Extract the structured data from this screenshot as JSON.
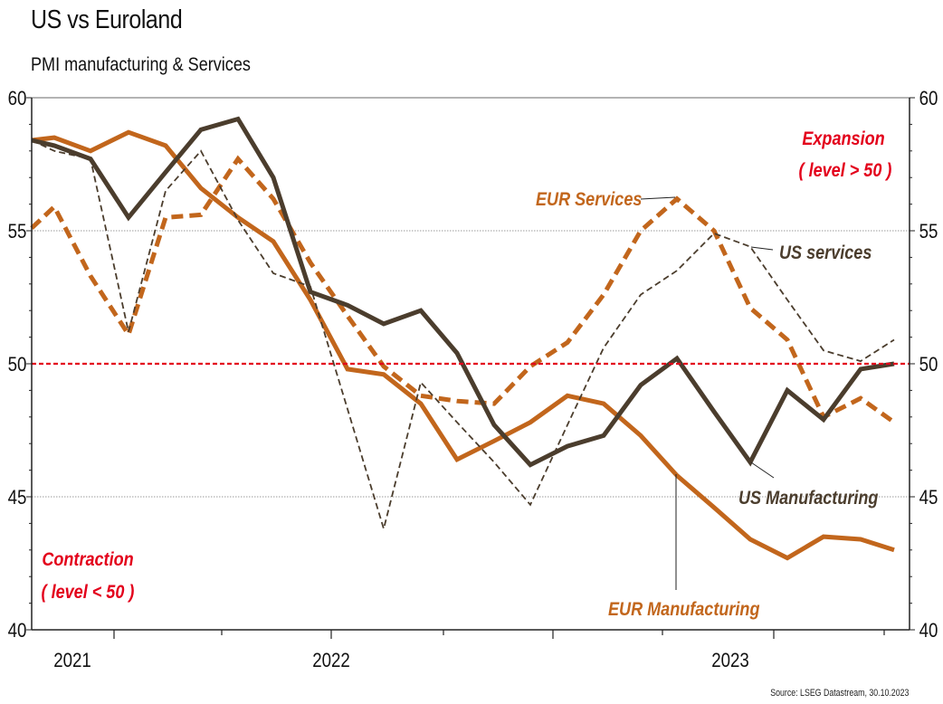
{
  "header": {
    "title": "US vs Euroland",
    "subtitle": "PMI manufacturing & Services"
  },
  "footer": {
    "source": "Source: LSEG Datastream, 30.10.2023"
  },
  "colors": {
    "eur": "#c2661c",
    "us": "#4b3d2d",
    "threshold": "#e3001b",
    "grid": "#9a9a9a",
    "axis": "#222222"
  },
  "chart_data": {
    "type": "line",
    "title": "US vs Euroland",
    "subtitle": "PMI manufacturing & Services",
    "xlabel": "",
    "ylabel": "",
    "ylim": [
      40,
      60
    ],
    "y_ticks": [
      40,
      45,
      50,
      55,
      60
    ],
    "y_axes": [
      "left",
      "right"
    ],
    "x_tick_labels": [
      "2021",
      "2022",
      "2023"
    ],
    "grid": "horizontal dotted at 45 and 55",
    "threshold_line": {
      "value": 50,
      "style": "red dashed"
    },
    "n_points": 25,
    "series": [
      {
        "name": "EUR Manufacturing",
        "style": "solid-thick",
        "color": "#c2661c",
        "values": [
          58.4,
          58.5,
          58.0,
          58.7,
          58.2,
          56.6,
          55.5,
          54.6,
          52.4,
          49.8,
          49.6,
          48.5,
          46.4,
          47.1,
          47.8,
          48.8,
          48.5,
          47.3,
          45.8,
          44.6,
          43.4,
          42.7,
          43.5,
          43.4,
          43.0
        ]
      },
      {
        "name": "US Manufacturing",
        "style": "solid-thick",
        "color": "#4b3d2d",
        "values": [
          58.4,
          58.2,
          57.7,
          55.5,
          57.2,
          58.8,
          59.2,
          57.0,
          52.7,
          52.2,
          51.5,
          52.0,
          50.4,
          47.7,
          46.2,
          46.9,
          47.3,
          49.2,
          50.2,
          48.2,
          46.3,
          49.0,
          47.9,
          49.8,
          50.0
        ]
      },
      {
        "name": "EUR Services",
        "style": "dashed-thick",
        "color": "#c2661c",
        "values": [
          55.1,
          55.9,
          53.3,
          51.1,
          55.5,
          55.6,
          57.7,
          56.2,
          53.8,
          51.8,
          49.9,
          48.8,
          48.6,
          48.5,
          49.9,
          50.8,
          52.6,
          55.0,
          56.2,
          55.0,
          52.1,
          50.9,
          48.0,
          48.7,
          47.8
        ]
      },
      {
        "name": "US services",
        "style": "dashed-thin",
        "color": "#4b3d2d",
        "values": [
          58.4,
          58.0,
          57.7,
          51.2,
          56.5,
          58.0,
          55.4,
          53.4,
          52.9,
          48.3,
          43.8,
          49.3,
          47.8,
          46.3,
          44.7,
          47.7,
          50.6,
          52.6,
          53.5,
          54.9,
          54.4,
          52.4,
          50.5,
          50.1,
          50.9
        ]
      }
    ],
    "annotations": [
      {
        "text": "EUR Services",
        "color": "#c2661c"
      },
      {
        "text": "US services",
        "color": "#4b3d2d"
      },
      {
        "text": "US Manufacturing",
        "color": "#4b3d2d"
      },
      {
        "text": "EUR Manufacturing",
        "color": "#c2661c"
      },
      {
        "text": "Expansion",
        "color": "#e3001b"
      },
      {
        "text": "( level > 50 )",
        "color": "#e3001b"
      },
      {
        "text": "Contraction",
        "color": "#e3001b"
      },
      {
        "text": "( level < 50 )",
        "color": "#e3001b"
      }
    ]
  }
}
